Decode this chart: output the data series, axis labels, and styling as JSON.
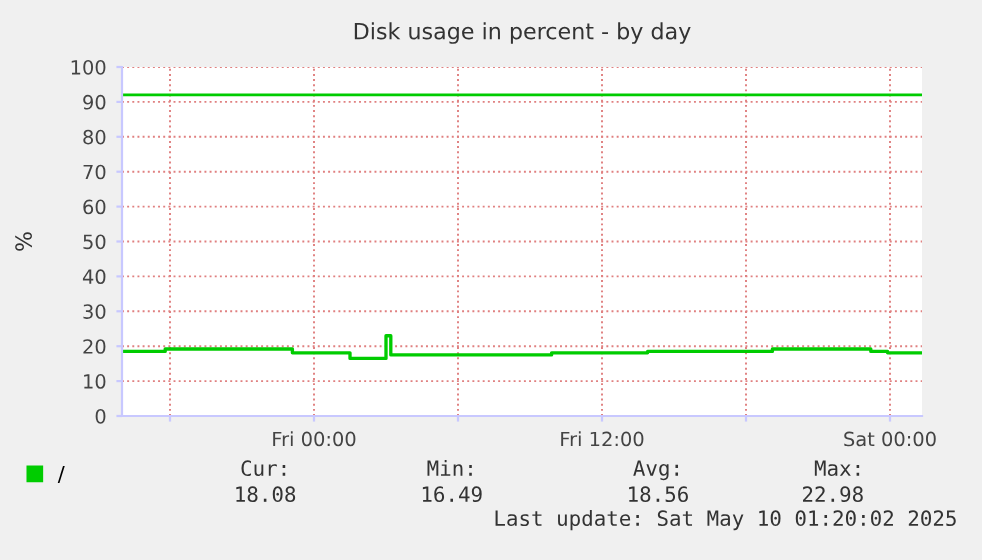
{
  "chart_data": {
    "type": "step",
    "title": "Disk usage in percent - by day",
    "ylabel": "%",
    "series": [
      {
        "name": "/",
        "color": "#00cc00",
        "x": [
          "2025-05-08T16:00",
          "2025-05-08T17:48",
          "2025-05-08T23:06",
          "2025-05-09T01:30",
          "2025-05-09T03:00",
          "2025-05-09T03:12",
          "2025-05-09T09:54",
          "2025-05-09T13:54",
          "2025-05-09T19:06",
          "2025-05-09T23:12",
          "2025-05-09T23:54",
          "2025-05-10T01:20"
        ],
        "values": [
          18.5,
          19.2,
          18.1,
          16.5,
          23,
          17.5,
          18.1,
          18.5,
          19.2,
          18.5,
          18.1,
          18.1
        ]
      }
    ],
    "xlim": [
      "2025-05-08T16:00",
      "2025-05-10T01:20"
    ],
    "xticks": [
      {
        "value": "2025-05-08T18:00",
        "label": null
      },
      {
        "value": "2025-05-09T00:00",
        "label": "Fri 00:00"
      },
      {
        "value": "2025-05-09T06:00",
        "label": null
      },
      {
        "value": "2025-05-09T12:00",
        "label": "Fri 12:00"
      },
      {
        "value": "2025-05-09T18:00",
        "label": null
      },
      {
        "value": "2025-05-10T00:00",
        "label": "Sat 00:00"
      }
    ],
    "ylim": [
      0,
      100
    ],
    "yticks": [
      0,
      10,
      20,
      30,
      40,
      50,
      60,
      70,
      80,
      90,
      100
    ],
    "ref_lines": [
      {
        "axis": "y",
        "value": 92,
        "color": "#00cc00"
      }
    ],
    "grid": true,
    "legend": "bottom left",
    "annotations": [
      "Cur:",
      "Min:",
      "Avg:",
      "Max:",
      "18.08",
      "16.49",
      "18.56",
      "22.98",
      "Last update: Sat May 10 01:20:02 2025"
    ]
  }
}
